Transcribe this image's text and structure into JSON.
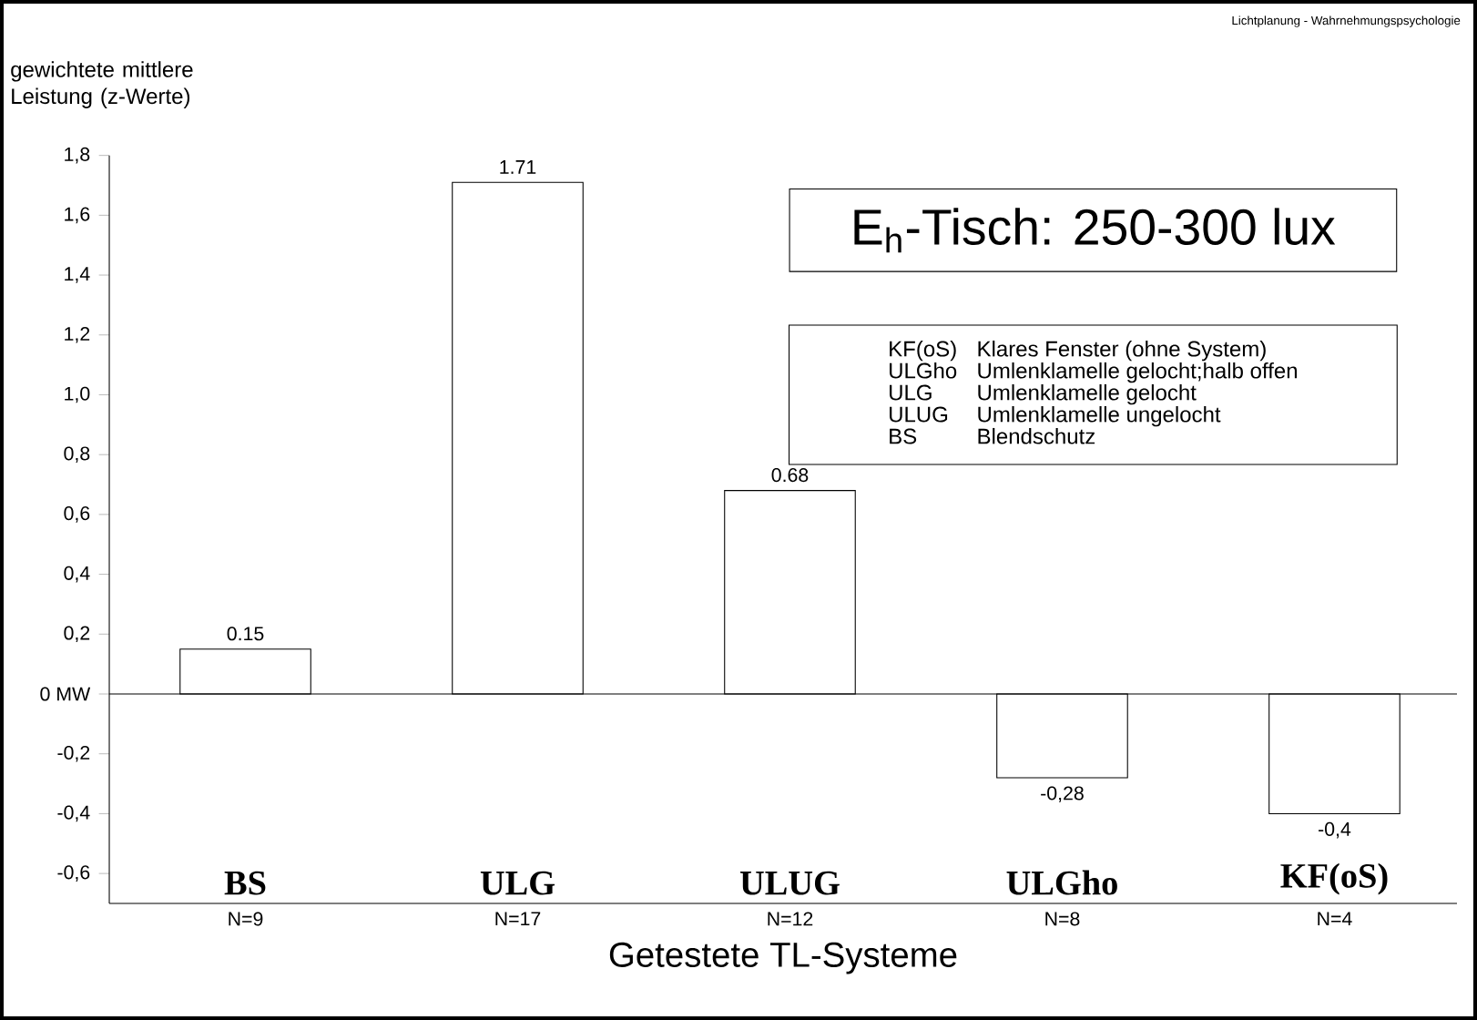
{
  "chart_data": {
    "type": "bar",
    "title": "E$_{h}$-Tisch: 250-300 lux",
    "ylabel": "gewichtete mittlere Leistung (z-Werte)",
    "xlabel": "Getestete TL-Systeme",
    "categories": [
      "N=9",
      "N=17",
      "N=12",
      "N=8",
      "N=4"
    ],
    "values": [
      0.15,
      1.71,
      0.68,
      -0.28,
      -0.4
    ],
    "value_labels": [
      "0.15",
      "1.71",
      "0.68",
      "-0,28",
      "-0,4"
    ],
    "color": "#ffffff",
    "ylim": [
      -0.7,
      1.8
    ],
    "yticks": [
      {
        "value": 1.8,
        "label": "1,8"
      },
      {
        "value": 1.6,
        "label": "1,6"
      },
      {
        "value": 1.4,
        "label": "1,4"
      },
      {
        "value": 1.2,
        "label": "1,2"
      },
      {
        "value": 1.0,
        "label": "1,0"
      },
      {
        "value": 0.8,
        "label": "0,8"
      },
      {
        "value": 0.6,
        "label": "0,6"
      },
      {
        "value": 0.4,
        "label": "0,4"
      },
      {
        "value": 0.2,
        "label": "0,2"
      },
      {
        "value": 0,
        "label": "0 MW"
      },
      {
        "value": -0.2,
        "label": "-0,2"
      },
      {
        "value": -0.4,
        "label": "-0,4"
      },
      {
        "value": -0.6,
        "label": "-0,6"
      }
    ],
    "ref_lines": [
      {
        "axis": "y",
        "value": 0
      }
    ],
    "grid": false,
    "annotations": [
      "Lichtplanung - Wahrnehmungspsychologie",
      "KF(oS)",
      "Klares Fenster (ohne System)",
      "ULGho",
      "Umlenklamelle gelocht;halb offen",
      "ULG",
      "Umlenklamelle gelocht",
      "ULUG",
      "Umlenklamelle ungelocht",
      "BS",
      "Blendschutz",
      "BS",
      "ULG",
      "ULUG",
      "ULGho",
      "KF(oS)"
    ]
  }
}
